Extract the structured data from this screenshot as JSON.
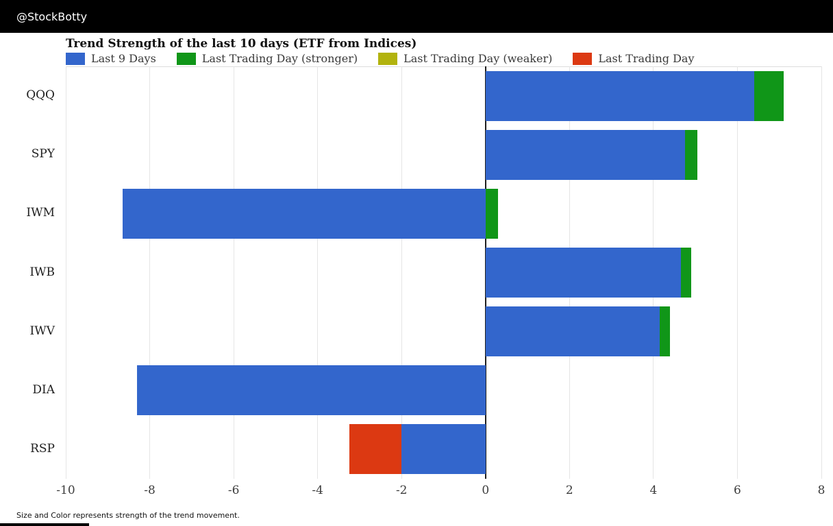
{
  "header": {
    "title": "@StockBotty"
  },
  "chart": {
    "title": "Trend Strength of the last 10 days (ETF from Indices)"
  },
  "footer": {
    "note": "Size and Color represents strength of the trend movement."
  },
  "colors": {
    "last9": "#3366cc",
    "stronger": "#109618",
    "weaker": "#b2b30e",
    "lastday": "#dc3912",
    "grid": "#e5e5e5",
    "zero_line": "#1f1f1f",
    "header_bg": "#000000"
  },
  "chart_data": {
    "type": "bar",
    "orientation": "horizontal",
    "title": "Trend Strength of the last 10 days (ETF from Indices)",
    "xlabel": "",
    "ylabel": "",
    "xlim": [
      -10,
      8
    ],
    "xticks": [
      -10,
      -8,
      -6,
      -4,
      -2,
      0,
      2,
      4,
      6,
      8
    ],
    "grid": "vertical",
    "legend_position": "top",
    "legend": [
      {
        "label": "Last 9 Days",
        "series": "last9"
      },
      {
        "label": "Last Trading Day (stronger)",
        "series": "stronger"
      },
      {
        "label": "Last Trading Day (weaker)",
        "series": "weaker"
      },
      {
        "label": "Last Trading Day",
        "series": "lastday"
      }
    ],
    "categories": [
      "QQQ",
      "SPY",
      "IWM",
      "IWB",
      "IWV",
      "DIA",
      "RSP"
    ],
    "rows": [
      {
        "label": "QQQ",
        "segments": [
          {
            "series": "last9",
            "from": 0,
            "to": 6.4
          },
          {
            "series": "stronger",
            "from": 6.4,
            "to": 7.1
          }
        ]
      },
      {
        "label": "SPY",
        "segments": [
          {
            "series": "last9",
            "from": 0,
            "to": 4.75
          },
          {
            "series": "stronger",
            "from": 4.75,
            "to": 5.05
          }
        ]
      },
      {
        "label": "IWM",
        "segments": [
          {
            "series": "last9",
            "from": -8.65,
            "to": 0
          },
          {
            "series": "stronger",
            "from": 0,
            "to": 0.3
          }
        ]
      },
      {
        "label": "IWB",
        "segments": [
          {
            "series": "last9",
            "from": 0,
            "to": 4.65
          },
          {
            "series": "stronger",
            "from": 4.65,
            "to": 4.9
          }
        ]
      },
      {
        "label": "IWV",
        "segments": [
          {
            "series": "last9",
            "from": 0,
            "to": 4.15
          },
          {
            "series": "stronger",
            "from": 4.15,
            "to": 4.4
          }
        ]
      },
      {
        "label": "DIA",
        "segments": [
          {
            "series": "last9",
            "from": -8.3,
            "to": 0
          }
        ]
      },
      {
        "label": "RSP",
        "segments": [
          {
            "series": "last9",
            "from": -2.0,
            "to": 0
          },
          {
            "series": "lastday",
            "from": -3.25,
            "to": -2.0
          }
        ]
      }
    ]
  }
}
